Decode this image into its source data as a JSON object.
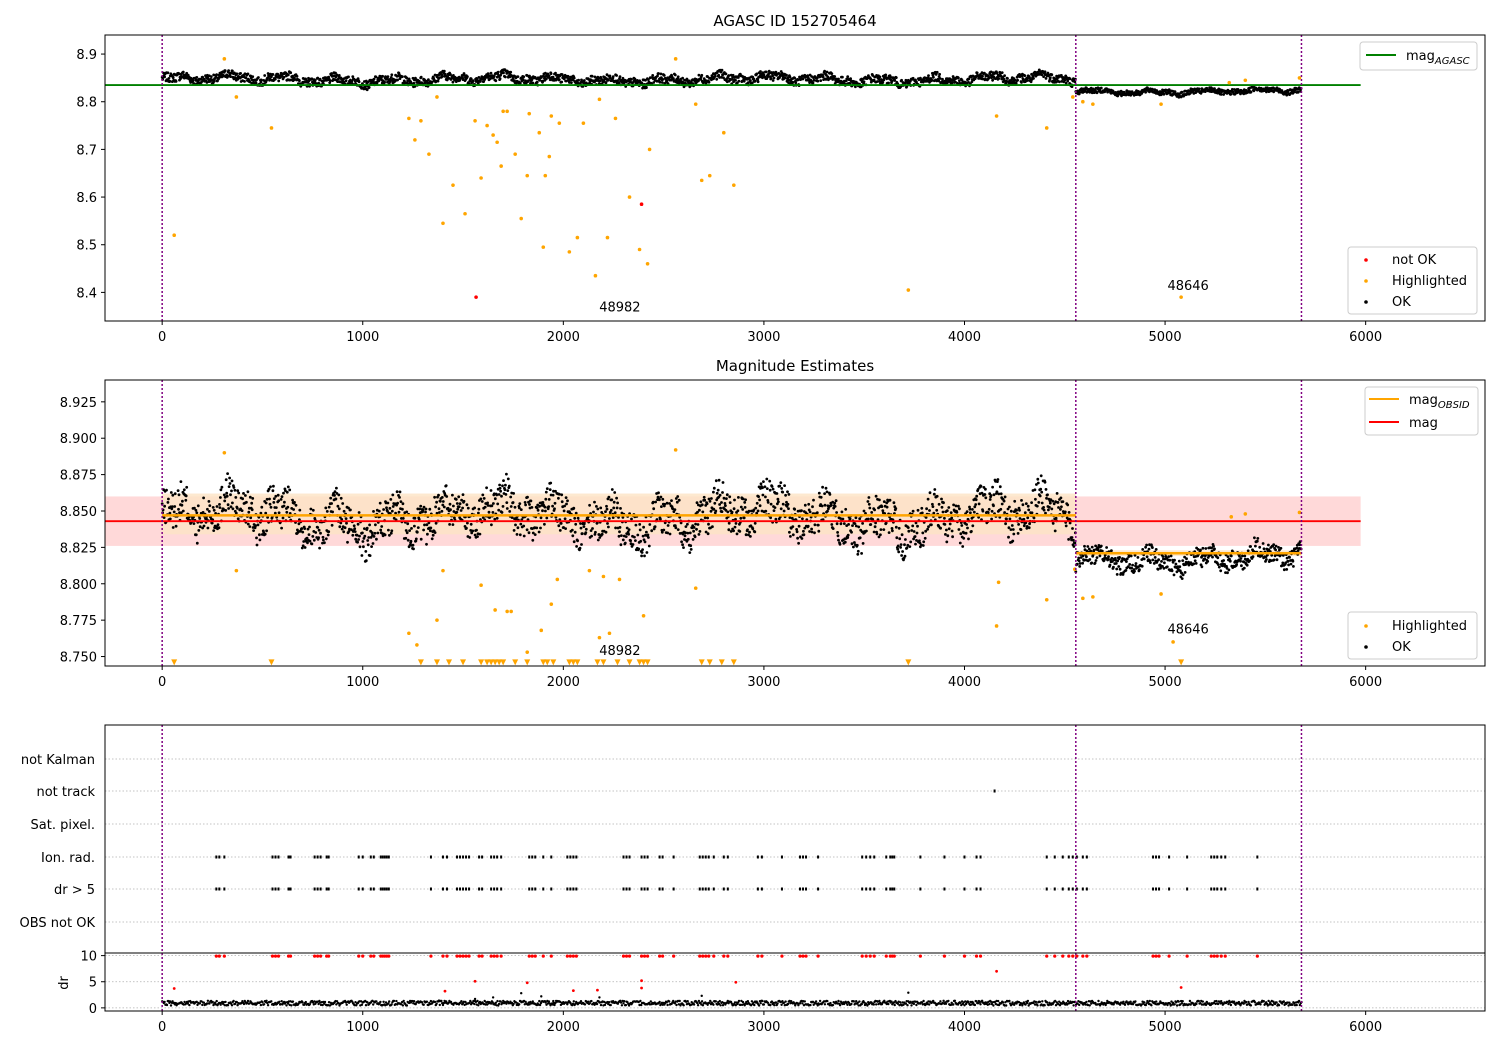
{
  "colors": {
    "ok": "#000000",
    "highlighted": "#ffa500",
    "not_ok": "#ff0000",
    "mag_agasc": "#008000",
    "mag_obsid": "#ffa500",
    "mag": "#ff0000",
    "obsid_boundary": "#800080",
    "mag_band": "#ffd9d9",
    "obsid_band": "#fde3c4",
    "grid": "#b0b0b0"
  },
  "chart_data": [
    {
      "id": "agasc",
      "type": "scatter",
      "title": "AGASC ID 152705464",
      "xlabel": "",
      "ylabel": "",
      "xlim": [
        -285,
        6595
      ],
      "ylim": [
        8.34,
        8.94
      ],
      "xticks": [
        0,
        1000,
        2000,
        3000,
        4000,
        5000,
        6000
      ],
      "yticks": [
        8.4,
        8.5,
        8.6,
        8.7,
        8.8,
        8.9
      ],
      "obsid_boundaries": [
        0,
        4555,
        5680
      ],
      "obsid_labels": [
        {
          "text": "48982",
          "x": 2282,
          "y": 8.36
        },
        {
          "text": "48646",
          "x": 5115,
          "y": 8.405
        }
      ],
      "hline": {
        "name": "mag_AGASC",
        "y": 8.835,
        "x": [
          -285,
          5975
        ]
      },
      "ok_segments": [
        {
          "x": [
            0,
            4555
          ],
          "mean": 8.847,
          "amp": 0.017
        },
        {
          "x": [
            4555,
            5680
          ],
          "mean": 8.822,
          "amp": 0.01
        }
      ],
      "highlighted": {
        "x": [
          60,
          310,
          370,
          545,
          1230,
          1260,
          1290,
          1330,
          1370,
          1400,
          1450,
          1510,
          1560,
          1590,
          1620,
          1650,
          1670,
          1690,
          1700,
          1720,
          1760,
          1790,
          1820,
          1830,
          1880,
          1900,
          1910,
          1930,
          1940,
          1980,
          2030,
          2070,
          2100,
          2160,
          2180,
          2220,
          2260,
          2330,
          2380,
          2420,
          2430,
          2560,
          2660,
          2690,
          2730,
          2800,
          2850,
          3720,
          4160,
          4410,
          4540,
          4590,
          4640,
          4980,
          5080,
          5320,
          5400,
          5670
        ],
        "y": [
          8.52,
          8.89,
          8.81,
          8.745,
          8.765,
          8.72,
          8.76,
          8.69,
          8.81,
          8.545,
          8.625,
          8.565,
          8.76,
          8.64,
          8.75,
          8.73,
          8.715,
          8.665,
          8.78,
          8.78,
          8.69,
          8.555,
          8.645,
          8.775,
          8.735,
          8.495,
          8.645,
          8.685,
          8.77,
          8.755,
          8.485,
          8.515,
          8.755,
          8.435,
          8.805,
          8.515,
          8.765,
          8.6,
          8.49,
          8.46,
          8.7,
          8.89,
          8.795,
          8.635,
          8.645,
          8.735,
          8.625,
          8.405,
          8.77,
          8.745,
          8.81,
          8.8,
          8.795,
          8.795,
          8.39,
          8.84,
          8.845,
          8.85
        ]
      },
      "not_ok": {
        "x": [
          1565,
          2390
        ],
        "y": [
          8.39,
          8.585
        ]
      },
      "legend": {
        "top": [
          {
            "label": "mag",
            "sub": "AGASC",
            "kind": "line",
            "color_key": "mag_agasc"
          }
        ],
        "bottom": [
          {
            "label": "not OK",
            "kind": "dot",
            "color_key": "not_ok"
          },
          {
            "label": "Highlighted",
            "kind": "dot",
            "color_key": "highlighted"
          },
          {
            "label": "OK",
            "kind": "dot",
            "color_key": "ok"
          }
        ]
      }
    },
    {
      "id": "estimates",
      "type": "scatter",
      "title": "Magnitude Estimates",
      "xlabel": "",
      "ylabel": "",
      "xlim": [
        -285,
        6595
      ],
      "ylim": [
        8.7435,
        8.94
      ],
      "xticks": [
        0,
        1000,
        2000,
        3000,
        4000,
        5000,
        6000
      ],
      "yticks": [
        8.75,
        8.775,
        8.8,
        8.825,
        8.85,
        8.875,
        8.9,
        8.925
      ],
      "ytick_labels": [
        "8.750",
        "8.775",
        "8.800",
        "8.825",
        "8.850",
        "8.875",
        "8.900",
        "8.925"
      ],
      "obsid_boundaries": [
        0,
        4555,
        5680
      ],
      "obsid_labels": [
        {
          "text": "48982",
          "x": 2282,
          "y": 8.751
        },
        {
          "text": "48646",
          "x": 5115,
          "y": 8.766
        }
      ],
      "mag": {
        "name": "mag",
        "y": 8.843,
        "band": [
          8.826,
          8.86
        ],
        "x": [
          -285,
          5975
        ]
      },
      "obsid_mags": [
        {
          "x": [
            0,
            4555
          ],
          "y": 8.847,
          "band": [
            8.834,
            8.862
          ]
        },
        {
          "x": [
            4555,
            5680
          ],
          "y": 8.821,
          "band": [
            8.819,
            8.823
          ]
        }
      ],
      "ok_segments": [
        {
          "x": [
            0,
            4555
          ],
          "mean": 8.846,
          "amp": 0.024
        },
        {
          "x": [
            4555,
            5680
          ],
          "mean": 8.818,
          "amp": 0.012
        }
      ],
      "highlighted": {
        "x": [
          310,
          370,
          1230,
          1270,
          1370,
          1400,
          1590,
          1660,
          1720,
          1740,
          1820,
          1890,
          1940,
          1970,
          2130,
          2180,
          2200,
          2230,
          2280,
          2400,
          2560,
          2660,
          4160,
          4170,
          4410,
          4550,
          4590,
          4640,
          4980,
          5040,
          5330,
          5400,
          5670
        ],
        "y": [
          8.89,
          8.809,
          8.766,
          8.758,
          8.775,
          8.809,
          8.799,
          8.782,
          8.781,
          8.781,
          8.753,
          8.768,
          8.786,
          8.803,
          8.809,
          8.763,
          8.805,
          8.766,
          8.803,
          8.778,
          8.892,
          8.797,
          8.771,
          8.801,
          8.789,
          8.81,
          8.79,
          8.791,
          8.793,
          8.76,
          8.846,
          8.848,
          8.849
        ]
      },
      "below_range_markers": {
        "y": 8.746,
        "x": [
          60,
          545,
          1290,
          1370,
          1430,
          1500,
          1590,
          1620,
          1640,
          1660,
          1680,
          1700,
          1760,
          1820,
          1900,
          1920,
          1950,
          2030,
          2050,
          2070,
          2170,
          2200,
          2270,
          2330,
          2380,
          2400,
          2420,
          2690,
          2730,
          2790,
          2850,
          3720,
          5080
        ]
      },
      "legend": {
        "top": [
          {
            "label": "mag",
            "sub": "OBSID",
            "kind": "line",
            "color_key": "mag_obsid"
          },
          {
            "label": "mag",
            "kind": "line",
            "color_key": "mag"
          }
        ],
        "bottom": [
          {
            "label": "Highlighted",
            "kind": "dot",
            "color_key": "highlighted"
          },
          {
            "label": "OK",
            "kind": "dot",
            "color_key": "ok"
          }
        ]
      }
    },
    {
      "id": "flags",
      "type": "scatter",
      "xlim": [
        -285,
        6595
      ],
      "categories": [
        "not Kalman",
        "not track",
        "Sat. pixel.",
        "Ion. rad.",
        "dr > 5",
        "OBS not OK"
      ],
      "obsid_boundaries": [
        0,
        4555,
        5680
      ],
      "flag_times": [
        270,
        285,
        310,
        550,
        565,
        580,
        630,
        640,
        760,
        775,
        790,
        820,
        830,
        980,
        1000,
        1040,
        1055,
        1090,
        1100,
        1110,
        1120,
        1130,
        1340,
        1400,
        1420,
        1470,
        1485,
        1500,
        1515,
        1530,
        1580,
        1595,
        1640,
        1655,
        1670,
        1690,
        1830,
        1845,
        1860,
        1900,
        1940,
        2020,
        2035,
        2050,
        2065,
        2300,
        2315,
        2330,
        2390,
        2405,
        2420,
        2480,
        2495,
        2550,
        2680,
        2695,
        2710,
        2725,
        2750,
        2800,
        2820,
        2970,
        2990,
        3090,
        3180,
        3195,
        3210,
        3270,
        3490,
        3510,
        3530,
        3550,
        3610,
        3630,
        3640,
        3650,
        3780,
        3900,
        4000,
        4060,
        4080,
        4410,
        4450,
        4490,
        4520,
        4540,
        4560,
        4590,
        4610,
        4940,
        4955,
        4970,
        5020,
        5110,
        5230,
        5245,
        5260,
        5280,
        5300,
        5460
      ],
      "not_track": [
        {
          "x": 4150
        }
      ],
      "secondary": {
        "ylabel": "dr",
        "ylim": [
          -0.6,
          10.5
        ],
        "yticks": [
          0,
          5,
          10
        ],
        "red_above": [
          {
            "x": 60,
            "y": 3.7
          },
          {
            "x": 1410,
            "y": 3.2
          },
          {
            "x": 1560,
            "y": 5.1
          },
          {
            "x": 1820,
            "y": 4.8
          },
          {
            "x": 2050,
            "y": 3.3
          },
          {
            "x": 2170,
            "y": 3.4
          },
          {
            "x": 2390,
            "y": 3.8
          },
          {
            "x": 2390,
            "y": 5.2
          },
          {
            "x": 2860,
            "y": 4.9
          },
          {
            "x": 4160,
            "y": 7.0
          },
          {
            "x": 5080,
            "y": 3.9
          }
        ],
        "black_spikes": [
          {
            "x": 1380,
            "y": 1.4
          },
          {
            "x": 1560,
            "y": 1.7
          },
          {
            "x": 1650,
            "y": 2.0
          },
          {
            "x": 1790,
            "y": 2.8
          },
          {
            "x": 1890,
            "y": 2.2
          },
          {
            "x": 1950,
            "y": 1.3
          },
          {
            "x": 2180,
            "y": 2.0
          },
          {
            "x": 2690,
            "y": 2.3
          },
          {
            "x": 3720,
            "y": 2.9
          }
        ]
      }
    }
  ]
}
